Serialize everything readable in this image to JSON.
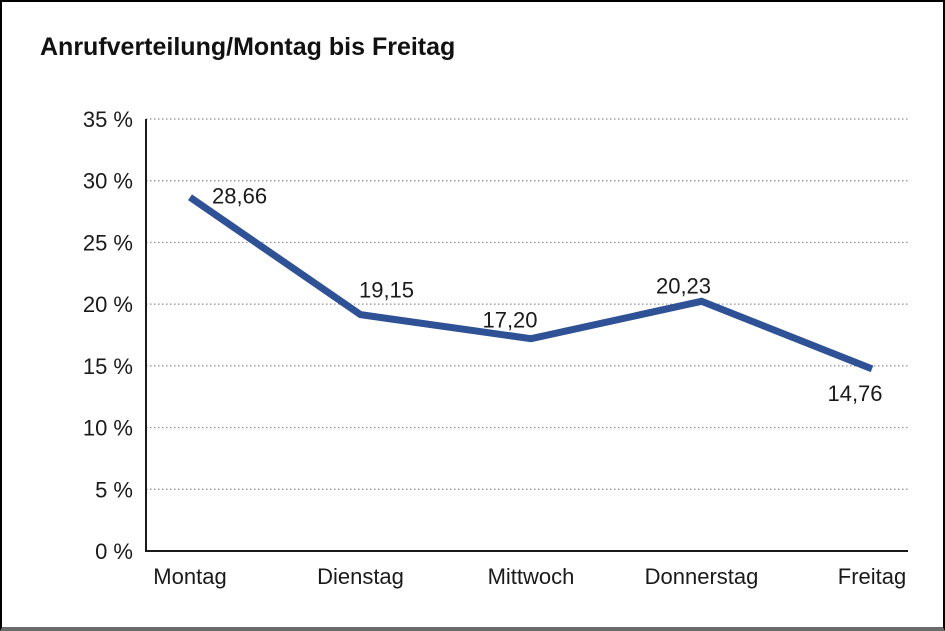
{
  "page": {
    "background_color": "#ffffff",
    "frame_border_color": "#000000",
    "frame_bottom_color": "#6b6b6b"
  },
  "chart_data": {
    "type": "line",
    "title": "Anrufverteilung/Montag bis Freitag",
    "categories": [
      "Montag",
      "Dienstag",
      "Mittwoch",
      "Donnerstag",
      "Freitag"
    ],
    "values": [
      28.66,
      19.15,
      17.2,
      20.23,
      14.76
    ],
    "value_labels": [
      "28,66",
      "19,15",
      "17,20",
      "20,23",
      "14,76"
    ],
    "ylim": [
      0,
      35
    ],
    "ytick_values": [
      0,
      5,
      10,
      15,
      20,
      25,
      30,
      35
    ],
    "ytick_labels": [
      "0 %",
      "5 %",
      "10 %",
      "15 %",
      "20 %",
      "25 %",
      "30 %",
      "35 %"
    ],
    "xlabel": "",
    "ylabel": "",
    "legend": "none",
    "grid": "horizontal-dotted",
    "line_color": "#2F5296",
    "gridline_color": "#8c8c8c",
    "axis_color": "#1a1a1a",
    "text_color": "#1a1a1a"
  }
}
